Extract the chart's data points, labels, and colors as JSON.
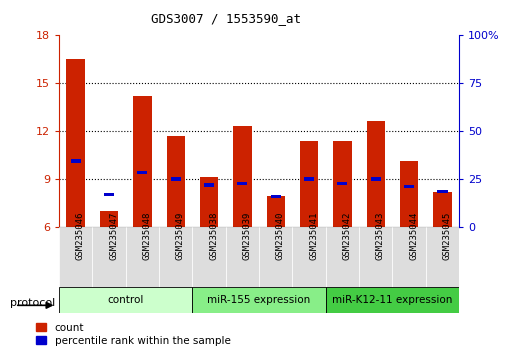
{
  "title": "GDS3007 / 1553590_at",
  "samples": [
    "GSM235046",
    "GSM235047",
    "GSM235048",
    "GSM235049",
    "GSM235038",
    "GSM235039",
    "GSM235040",
    "GSM235041",
    "GSM235042",
    "GSM235043",
    "GSM235044",
    "GSM235045"
  ],
  "red_values": [
    16.5,
    7.0,
    14.2,
    11.7,
    9.1,
    12.3,
    7.9,
    11.4,
    11.4,
    12.6,
    10.1,
    8.2
  ],
  "blue_values": [
    10.1,
    8.0,
    9.4,
    9.0,
    8.6,
    8.7,
    7.9,
    9.0,
    8.7,
    9.0,
    8.5,
    8.2
  ],
  "groups": [
    {
      "label": "control",
      "start": 0,
      "end": 4,
      "color": "#ccffcc"
    },
    {
      "label": "miR-155 expression",
      "start": 4,
      "end": 8,
      "color": "#88ee88"
    },
    {
      "label": "miR-K12-11 expression",
      "start": 8,
      "end": 12,
      "color": "#44cc44"
    }
  ],
  "ylim": [
    6,
    18
  ],
  "yticks_left": [
    6,
    9,
    12,
    15,
    18
  ],
  "yticks_right_vals": [
    0,
    25,
    50,
    75,
    100
  ],
  "yticks_right_labels": [
    "0",
    "25",
    "50",
    "75",
    "100%"
  ],
  "bar_color": "#cc2200",
  "blue_color": "#0000cc",
  "bar_width": 0.55,
  "background_color": "#ffffff",
  "legend_count_label": "count",
  "legend_pct_label": "percentile rank within the sample",
  "protocol_label": "protocol"
}
